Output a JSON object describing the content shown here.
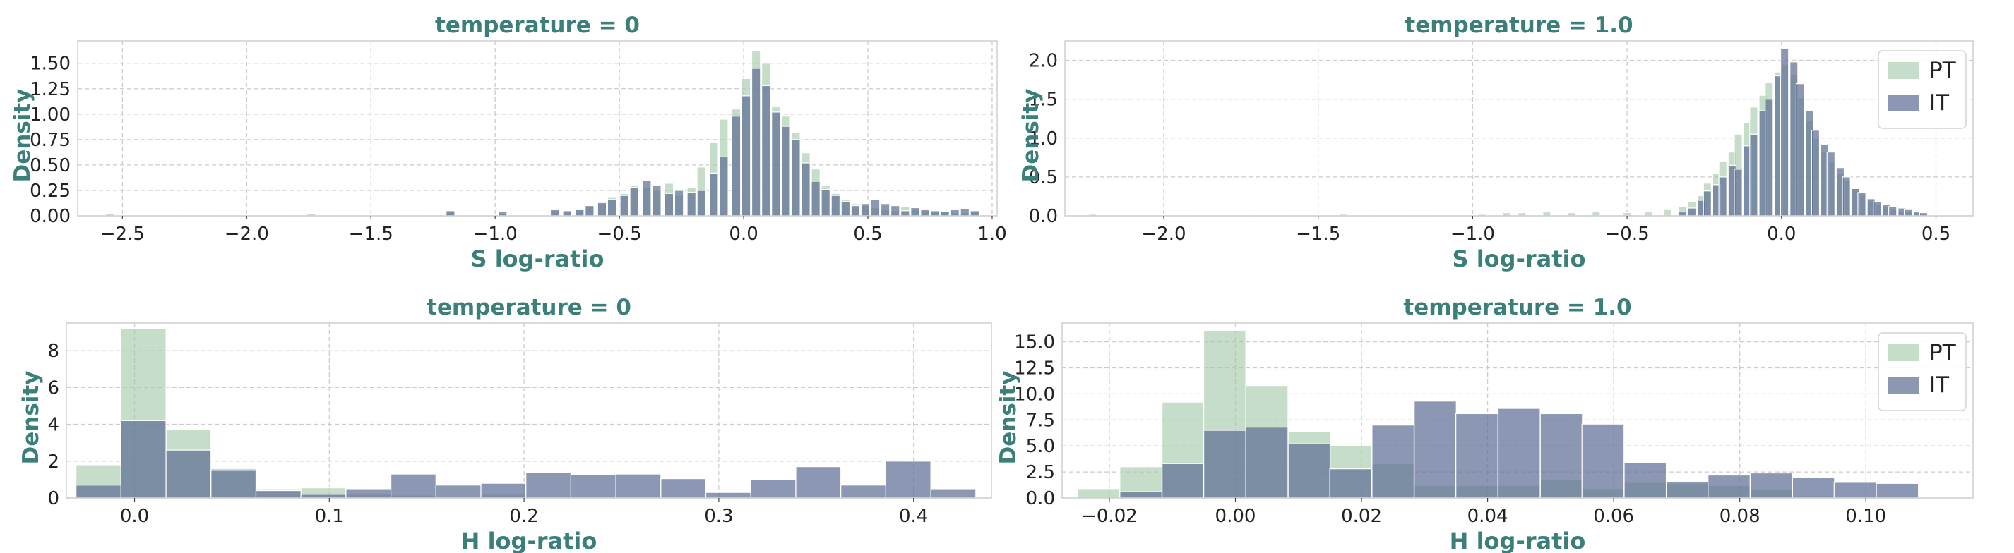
{
  "colors": {
    "PT": "#a3c9a8",
    "IT": "#5f6f96",
    "label": "#3b7f7b",
    "grid": "#cccccc",
    "spine": "#cfcfcf"
  },
  "legend_labels": [
    "PT",
    "IT"
  ],
  "chart_data": [
    {
      "type": "bar",
      "title": "temperature = 0",
      "xlabel": "S log-ratio",
      "ylabel": "Density",
      "xlim": [
        -2.68,
        1.02
      ],
      "ylim": [
        0,
        1.72
      ],
      "xticks": [
        -2.5,
        -2.0,
        -1.5,
        -1.0,
        -0.5,
        0.0,
        0.5,
        1.0
      ],
      "xtick_labels": [
        "−2.5",
        "−2.0",
        "−1.5",
        "−1.0",
        "−0.5",
        "0.0",
        "0.5",
        "1.0"
      ],
      "yticks": [
        0,
        0.25,
        0.5,
        0.75,
        1.0,
        1.25,
        1.5
      ],
      "ytick_labels": [
        "0.00",
        "0.25",
        "0.50",
        "0.75",
        "1.00",
        "1.25",
        "1.50"
      ],
      "grid": true,
      "legend": false,
      "bin_width": 0.035,
      "series": [
        {
          "name": "PT",
          "x": [
            -2.55,
            -1.74,
            -1.18,
            -0.97,
            -0.76,
            -0.71,
            -0.66,
            -0.62,
            -0.57,
            -0.53,
            -0.48,
            -0.44,
            -0.39,
            -0.35,
            -0.3,
            -0.26,
            -0.21,
            -0.17,
            -0.12,
            -0.08,
            -0.03,
            0.01,
            0.05,
            0.09,
            0.13,
            0.17,
            0.21,
            0.25,
            0.29,
            0.33,
            0.37,
            0.41,
            0.45,
            0.49,
            0.53,
            0.57,
            0.61,
            0.65,
            0.69,
            0.73,
            0.77,
            0.81,
            0.85,
            0.89,
            0.93
          ],
          "values": [
            0.02,
            0.02,
            0.04,
            0.02,
            0.05,
            0.04,
            0.06,
            0.1,
            0.12,
            0.18,
            0.22,
            0.3,
            0.28,
            0.25,
            0.32,
            0.2,
            0.28,
            0.48,
            0.72,
            0.95,
            1.05,
            1.35,
            1.62,
            1.5,
            1.08,
            0.98,
            0.82,
            0.62,
            0.46,
            0.3,
            0.22,
            0.16,
            0.12,
            0.1,
            0.08,
            0.06,
            0.05,
            0.09,
            0.06,
            0.05,
            0.04,
            0.04,
            0.03,
            0.03,
            0.04
          ]
        },
        {
          "name": "IT",
          "x": [
            -1.18,
            -0.97,
            -0.76,
            -0.71,
            -0.66,
            -0.62,
            -0.57,
            -0.53,
            -0.48,
            -0.44,
            -0.39,
            -0.35,
            -0.3,
            -0.26,
            -0.21,
            -0.17,
            -0.12,
            -0.08,
            -0.03,
            0.01,
            0.05,
            0.09,
            0.13,
            0.17,
            0.21,
            0.25,
            0.29,
            0.33,
            0.37,
            0.41,
            0.45,
            0.49,
            0.53,
            0.57,
            0.61,
            0.65,
            0.69,
            0.73,
            0.77,
            0.81,
            0.85,
            0.89,
            0.93
          ],
          "values": [
            0.05,
            0.04,
            0.06,
            0.05,
            0.06,
            0.1,
            0.13,
            0.16,
            0.2,
            0.28,
            0.35,
            0.3,
            0.22,
            0.25,
            0.23,
            0.25,
            0.42,
            0.58,
            0.98,
            1.18,
            1.45,
            1.28,
            1.02,
            0.88,
            0.75,
            0.52,
            0.34,
            0.26,
            0.2,
            0.14,
            0.1,
            0.12,
            0.16,
            0.12,
            0.1,
            0.05,
            0.08,
            0.06,
            0.05,
            0.04,
            0.06,
            0.07,
            0.05
          ]
        }
      ]
    },
    {
      "type": "bar",
      "title": "temperature = 1.0",
      "xlabel": "S log-ratio",
      "ylabel": "Density",
      "xlim": [
        -2.32,
        0.62
      ],
      "ylim": [
        0,
        2.25
      ],
      "xticks": [
        -2.0,
        -1.5,
        -1.0,
        -0.5,
        0.0,
        0.5
      ],
      "xtick_labels": [
        "−2.0",
        "−1.5",
        "−1.0",
        "−0.5",
        "0.0",
        "0.5"
      ],
      "yticks": [
        0,
        0.5,
        1.0,
        1.5,
        2.0
      ],
      "ytick_labels": [
        "0.0",
        "0.5",
        "1.0",
        "1.5",
        "2.0"
      ],
      "grid": true,
      "legend": "upper right",
      "bin_width": 0.0255,
      "series": [
        {
          "name": "PT",
          "x": [
            -2.23,
            -1.42,
            -0.97,
            -0.89,
            -0.84,
            -0.76,
            -0.68,
            -0.6,
            -0.5,
            -0.43,
            -0.37,
            -0.32,
            -0.29,
            -0.26,
            -0.24,
            -0.21,
            -0.19,
            -0.16,
            -0.14,
            -0.11,
            -0.09,
            -0.06,
            -0.04,
            -0.01,
            0.01,
            0.04,
            0.06,
            0.09,
            0.11,
            0.14,
            0.16,
            0.19,
            0.21,
            0.24,
            0.26,
            0.29,
            0.31,
            0.34,
            0.36,
            0.39,
            0.41,
            0.44,
            0.46
          ],
          "values": [
            0.02,
            0.02,
            0.02,
            0.04,
            0.04,
            0.05,
            0.04,
            0.05,
            0.04,
            0.05,
            0.08,
            0.12,
            0.18,
            0.26,
            0.42,
            0.55,
            0.7,
            0.82,
            1.05,
            1.2,
            1.4,
            1.55,
            1.72,
            1.85,
            1.95,
            1.82,
            1.52,
            1.22,
            1.0,
            0.82,
            0.7,
            0.55,
            0.45,
            0.35,
            0.28,
            0.2,
            0.15,
            0.12,
            0.08,
            0.06,
            0.05,
            0.04,
            0.03
          ]
        },
        {
          "name": "IT",
          "x": [
            -0.32,
            -0.29,
            -0.26,
            -0.24,
            -0.21,
            -0.19,
            -0.16,
            -0.14,
            -0.11,
            -0.09,
            -0.06,
            -0.04,
            -0.01,
            0.01,
            0.04,
            0.06,
            0.09,
            0.11,
            0.14,
            0.16,
            0.19,
            0.21,
            0.24,
            0.26,
            0.29,
            0.31,
            0.34,
            0.36,
            0.39,
            0.41,
            0.44,
            0.46
          ],
          "values": [
            0.05,
            0.1,
            0.2,
            0.32,
            0.4,
            0.5,
            0.65,
            0.6,
            0.9,
            1.05,
            1.35,
            1.5,
            1.8,
            2.15,
            1.98,
            1.7,
            1.35,
            1.1,
            0.92,
            0.82,
            0.62,
            0.5,
            0.35,
            0.3,
            0.22,
            0.18,
            0.15,
            0.12,
            0.1,
            0.08,
            0.05,
            0.04
          ]
        }
      ]
    },
    {
      "type": "bar",
      "title": "temperature = 0",
      "xlabel": "H log-ratio",
      "ylabel": "Density",
      "xlim": [
        -0.035,
        0.44
      ],
      "ylim": [
        0,
        9.5
      ],
      "xticks": [
        0.0,
        0.1,
        0.2,
        0.3,
        0.4
      ],
      "xtick_labels": [
        "0.0",
        "0.1",
        "0.2",
        "0.3",
        "0.4"
      ],
      "yticks": [
        0,
        2,
        4,
        6,
        8
      ],
      "ytick_labels": [
        "0",
        "2",
        "4",
        "6",
        "8"
      ],
      "grid": true,
      "legend": false,
      "bin_width": 0.0231,
      "series": [
        {
          "name": "PT",
          "x": [
            -0.0185,
            0.0046,
            0.0277,
            0.0508,
            0.0739,
            0.097,
            0.1201,
            0.1432,
            0.1663,
            0.1894,
            0.2125,
            0.2356,
            0.2587,
            0.2818,
            0.3049,
            0.328,
            0.3511,
            0.3742,
            0.3973,
            0.4204
          ],
          "values": [
            1.8,
            9.2,
            3.7,
            1.6,
            0.5,
            0.55,
            0.2,
            0.15,
            0.05,
            0.2,
            0.1,
            0.05,
            0.0,
            0.05,
            0.0,
            0.0,
            0.0,
            0.05,
            0.0,
            0.0
          ]
        },
        {
          "name": "IT",
          "x": [
            -0.0185,
            0.0046,
            0.0277,
            0.0508,
            0.0739,
            0.097,
            0.1201,
            0.1432,
            0.1663,
            0.1894,
            0.2125,
            0.2356,
            0.2587,
            0.2818,
            0.3049,
            0.328,
            0.3511,
            0.3742,
            0.3973,
            0.4204
          ],
          "values": [
            0.7,
            4.2,
            2.6,
            1.5,
            0.4,
            0.2,
            0.5,
            1.3,
            0.7,
            0.8,
            1.4,
            1.25,
            1.3,
            1.05,
            0.3,
            1.0,
            1.7,
            0.7,
            2.0,
            0.5
          ]
        }
      ]
    },
    {
      "type": "bar",
      "title": "temperature = 1.0",
      "xlabel": "H log-ratio",
      "ylabel": "Density",
      "xlim": [
        -0.0275,
        0.117
      ],
      "ylim": [
        0,
        16.8
      ],
      "xticks": [
        -0.02,
        0.0,
        0.02,
        0.04,
        0.06,
        0.08,
        0.1
      ],
      "xtick_labels": [
        "−0.02",
        "0.00",
        "0.02",
        "0.04",
        "0.06",
        "0.08",
        "0.10"
      ],
      "yticks": [
        0,
        2.5,
        5.0,
        7.5,
        10.0,
        12.5,
        15.0
      ],
      "ytick_labels": [
        "0.0",
        "2.5",
        "5.0",
        "7.5",
        "10.0",
        "12.5",
        "15.0"
      ],
      "grid": true,
      "legend": "upper right",
      "bin_width": 0.00667,
      "series": [
        {
          "name": "PT",
          "x": [
            -0.0217,
            -0.015,
            -0.0083,
            -0.0017,
            0.005,
            0.0117,
            0.0183,
            0.025,
            0.0317,
            0.0383,
            0.045,
            0.0517,
            0.0583,
            0.065,
            0.0717,
            0.0783,
            0.085,
            0.0917,
            0.0983,
            0.105
          ],
          "values": [
            0.9,
            3.0,
            9.2,
            16.1,
            10.8,
            6.4,
            5.0,
            3.3,
            1.2,
            1.2,
            1.2,
            1.8,
            0.9,
            1.5,
            1.4,
            1.2,
            0.8,
            0.2,
            0.1,
            0.0
          ]
        },
        {
          "name": "IT",
          "x": [
            -0.0217,
            -0.015,
            -0.0083,
            -0.0017,
            0.005,
            0.0117,
            0.0183,
            0.025,
            0.0317,
            0.0383,
            0.045,
            0.0517,
            0.0583,
            0.065,
            0.0717,
            0.0783,
            0.085,
            0.0917,
            0.0983,
            0.105
          ],
          "values": [
            0.0,
            0.6,
            3.3,
            6.5,
            6.8,
            5.2,
            2.8,
            7.0,
            9.3,
            8.1,
            8.6,
            8.1,
            7.1,
            3.4,
            1.6,
            2.2,
            2.4,
            2.0,
            1.5,
            1.4
          ]
        }
      ]
    }
  ]
}
